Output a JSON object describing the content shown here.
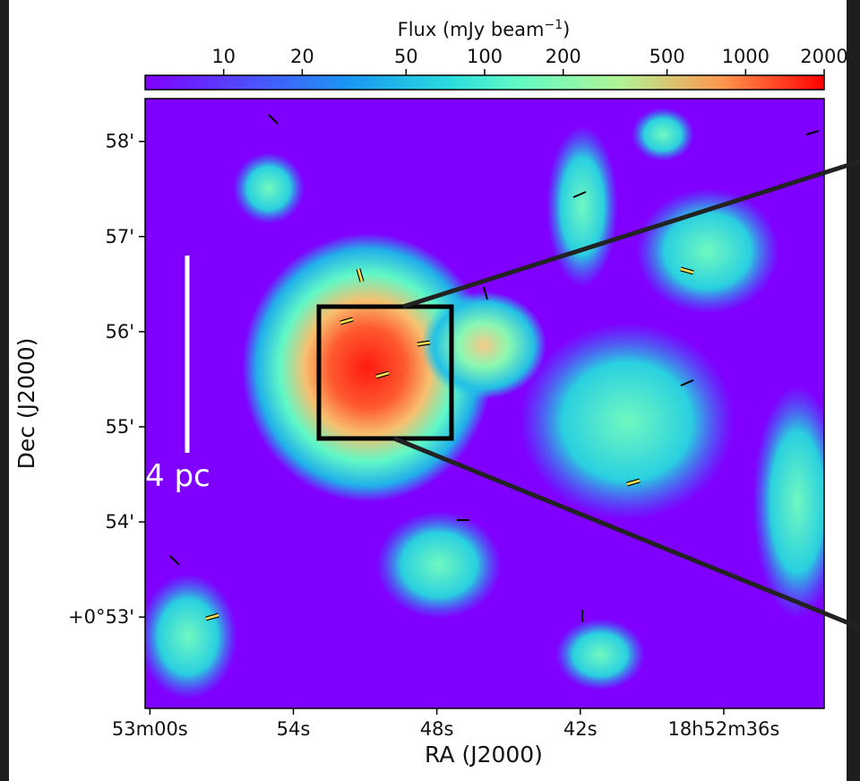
{
  "chart_data": {
    "type": "image",
    "xlabel": "RA (J2000)",
    "ylabel": "Dec (J2000)",
    "xlim": [
      180.2,
      151.8
    ],
    "xticks": [
      {
        "value": 180,
        "label": "53m00s"
      },
      {
        "value": 174,
        "label": "54s"
      },
      {
        "value": 168,
        "label": "48s"
      },
      {
        "value": 162,
        "label": "42s"
      },
      {
        "value": 156,
        "label": "18h52m36s"
      }
    ],
    "ylim": [
      52.04,
      58.45
    ],
    "yticks": [
      {
        "value": 58,
        "label": "58'"
      },
      {
        "value": 57,
        "label": "57'"
      },
      {
        "value": 56,
        "label": "56'"
      },
      {
        "value": 55,
        "label": "55'"
      },
      {
        "value": 54,
        "label": "54'"
      },
      {
        "value": 53,
        "label": "+0°53'"
      }
    ],
    "colorbar": {
      "label_main": "Flux (mJy beam",
      "label_sup": "−1",
      "label_end": ")",
      "log": true,
      "clim": [
        5,
        2000
      ],
      "ticks": [
        10,
        20,
        50,
        100,
        200,
        500,
        1000,
        2000
      ]
    },
    "scale_bar": "4 pc"
  }
}
